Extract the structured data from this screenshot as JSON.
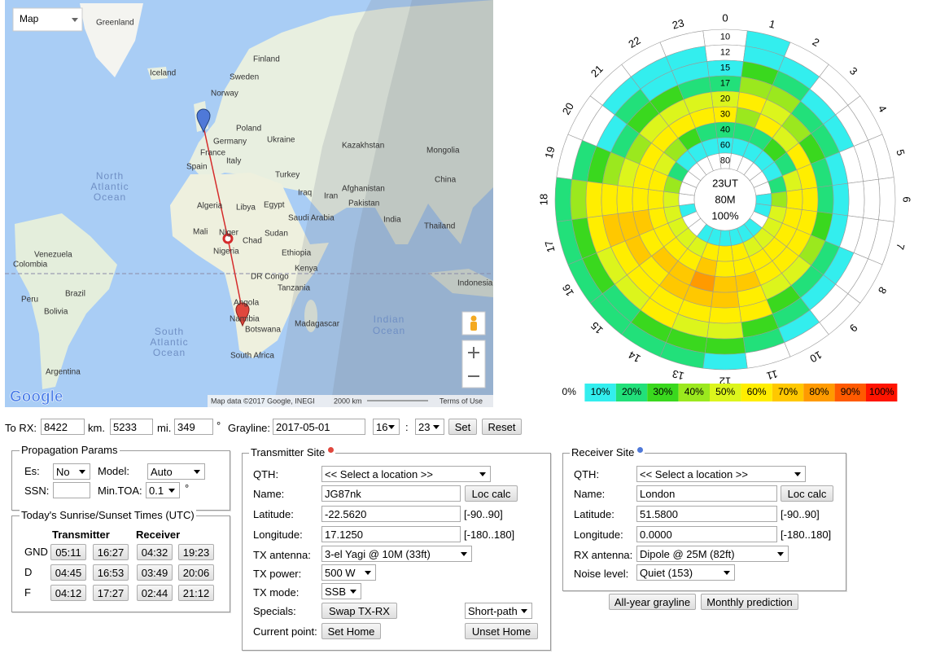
{
  "map": {
    "type_selector": "Map",
    "labels": [
      "Greenland",
      "Iceland",
      "Finland",
      "Sweden",
      "Norway",
      "Poland",
      "Germany",
      "Ukraine",
      "France",
      "Italy",
      "Spain",
      "Kazakhstan",
      "Mongolia",
      "Turkey",
      "North",
      "Atlantic",
      "Ocean",
      "Algeria",
      "Libya",
      "Egypt",
      "Iraq",
      "Iran",
      "Afghanistan",
      "Pakistan",
      "Saudi Arabia",
      "China",
      "India",
      "Thailand",
      "Mali",
      "Niger",
      "Chad",
      "Sudan",
      "Nigeria",
      "Ethiopia",
      "Venezuela",
      "Colombia",
      "DR Congo",
      "Kenya",
      "Tanzania",
      "Indonesia",
      "Brazil",
      "Peru",
      "Bolivia",
      "Angola",
      "Namibia",
      "Botswana",
      "Madagascar",
      "Indian",
      "Ocean",
      "South",
      "Atlantic",
      "Ocean",
      "South Africa",
      "Argentina"
    ],
    "attribution": "Map data ©2017 Google, INEGI",
    "scale": "2000 km",
    "terms": "Terms of Use",
    "logo": "Google"
  },
  "polar": {
    "hours": [
      0,
      1,
      2,
      3,
      4,
      5,
      6,
      7,
      8,
      9,
      10,
      11,
      12,
      13,
      14,
      15,
      16,
      17,
      18,
      19,
      20,
      21,
      22,
      23
    ],
    "frequencies": [
      10,
      12,
      15,
      17,
      20,
      30,
      40,
      60,
      80
    ],
    "values": [
      [
        0,
        0,
        10,
        20,
        50,
        60,
        20,
        10,
        0
      ],
      [
        10,
        10,
        30,
        40,
        60,
        40,
        20,
        10,
        0
      ],
      [
        0,
        10,
        20,
        40,
        50,
        60,
        20,
        10,
        0
      ],
      [
        0,
        0,
        10,
        20,
        40,
        50,
        30,
        10,
        0
      ],
      [
        0,
        0,
        10,
        20,
        30,
        60,
        20,
        10,
        0
      ],
      [
        0,
        0,
        0,
        10,
        20,
        60,
        50,
        20,
        0
      ],
      [
        0,
        0,
        0,
        10,
        20,
        60,
        60,
        40,
        10
      ],
      [
        0,
        0,
        0,
        10,
        30,
        60,
        60,
        50,
        10
      ],
      [
        0,
        0,
        10,
        20,
        40,
        60,
        60,
        50,
        0
      ],
      [
        0,
        0,
        10,
        20,
        50,
        60,
        60,
        50,
        10
      ],
      [
        0,
        10,
        20,
        30,
        50,
        60,
        60,
        50,
        10
      ],
      [
        0,
        20,
        30,
        60,
        60,
        70,
        60,
        60,
        10
      ],
      [
        10,
        30,
        50,
        60,
        70,
        70,
        60,
        60,
        10
      ],
      [
        20,
        30,
        50,
        60,
        70,
        80,
        70,
        60,
        10
      ],
      [
        20,
        30,
        60,
        60,
        70,
        70,
        60,
        50,
        10
      ],
      [
        20,
        20,
        50,
        60,
        60,
        70,
        60,
        50,
        0
      ],
      [
        20,
        30,
        50,
        60,
        70,
        60,
        60,
        50,
        0
      ],
      [
        20,
        30,
        60,
        70,
        70,
        70,
        60,
        50,
        10
      ],
      [
        20,
        40,
        60,
        60,
        60,
        60,
        60,
        50,
        0
      ],
      [
        0,
        20,
        30,
        40,
        50,
        60,
        60,
        40,
        0
      ],
      [
        0,
        0,
        10,
        20,
        40,
        60,
        50,
        20,
        0
      ],
      [
        0,
        10,
        20,
        30,
        50,
        60,
        40,
        10,
        0
      ],
      [
        0,
        10,
        10,
        30,
        50,
        60,
        30,
        10,
        0
      ],
      [
        0,
        10,
        10,
        20,
        50,
        60,
        20,
        10,
        0
      ]
    ],
    "center": [
      "23UT",
      "80M",
      "100%"
    ],
    "legend": [
      {
        "value": 0,
        "label": "0%",
        "color": "#ffffff"
      },
      {
        "value": 10,
        "label": "10%",
        "color": "#33eeee"
      },
      {
        "value": 20,
        "label": "20%",
        "color": "#22e07a"
      },
      {
        "value": 30,
        "label": "30%",
        "color": "#3ad81e"
      },
      {
        "value": 40,
        "label": "40%",
        "color": "#9be81e"
      },
      {
        "value": 50,
        "label": "50%",
        "color": "#dcf51c"
      },
      {
        "value": 60,
        "label": "60%",
        "color": "#ffee00"
      },
      {
        "value": 70,
        "label": "70%",
        "color": "#ffc800"
      },
      {
        "value": 80,
        "label": "80%",
        "color": "#ff9a00"
      },
      {
        "value": 90,
        "label": "90%",
        "color": "#ff5a00"
      },
      {
        "value": 100,
        "label": "100%",
        "color": "#ff1400"
      }
    ]
  },
  "distance": {
    "label": "To RX:",
    "km": "8422",
    "km_unit": "km.",
    "mi": "5233",
    "mi_unit": "mi.",
    "bearing": "349",
    "bearing_unit": "°",
    "grayline_label": "Grayline:",
    "date": "2017-05-01",
    "hour": "16",
    "separator": ":",
    "minute": "23",
    "set": "Set",
    "reset": "Reset"
  },
  "propagation": {
    "title": "Propagation Params",
    "es_label": "Es:",
    "es": "No",
    "model_label": "Model:",
    "model": "Auto",
    "ssn_label": "SSN:",
    "min_toa_label": "Min.TOA:",
    "min_toa": "0.1",
    "min_toa_unit": "°"
  },
  "sun_times": {
    "title": "Today's Sunrise/Sunset Times (UTC)",
    "columns": [
      "Transmitter",
      "Receiver"
    ],
    "rows": [
      [
        "GND",
        "05:11",
        "16:27",
        "04:32",
        "19:23"
      ],
      [
        "D",
        "04:45",
        "16:53",
        "03:49",
        "20:06"
      ],
      [
        "F",
        "04:12",
        "17:27",
        "02:44",
        "21:12"
      ]
    ]
  },
  "transmitter": {
    "title": "Transmitter Site",
    "qth_label": "QTH:",
    "qth": "<< Select a location >>",
    "name_label": "Name:",
    "name": "JG87nk",
    "loc_calc": "Loc calc",
    "lat_label": "Latitude:",
    "lat": "-22.5620",
    "lat_range": "[-90..90]",
    "lon_label": "Longitude:",
    "lon": "17.1250",
    "lon_range": "[-180..180]",
    "antenna_label": "TX antenna:",
    "antenna": "3-el Yagi @ 10M (33ft)",
    "power_label": "TX power:",
    "power": "500 W",
    "mode_label": "TX mode:",
    "mode": "SSB",
    "specials_label": "Specials:",
    "swap": "Swap TX-RX",
    "path": "Short-path",
    "current_label": "Current point:",
    "set_home": "Set Home",
    "unset_home": "Unset Home"
  },
  "receiver": {
    "title": "Receiver Site",
    "qth_label": "QTH:",
    "qth": "<< Select a location >>",
    "name_label": "Name:",
    "name": "London",
    "loc_calc": "Loc calc",
    "lat_label": "Latitude:",
    "lat": "51.5800",
    "lat_range": "[-90..90]",
    "lon_label": "Longitude:",
    "lon": "0.0000",
    "lon_range": "[-180..180]",
    "antenna_label": "RX antenna:",
    "antenna": "Dipole @ 25M (82ft)",
    "noise_label": "Noise level:",
    "noise": "Quiet (153)"
  },
  "buttons": [
    "All-year grayline",
    "Monthly prediction"
  ]
}
